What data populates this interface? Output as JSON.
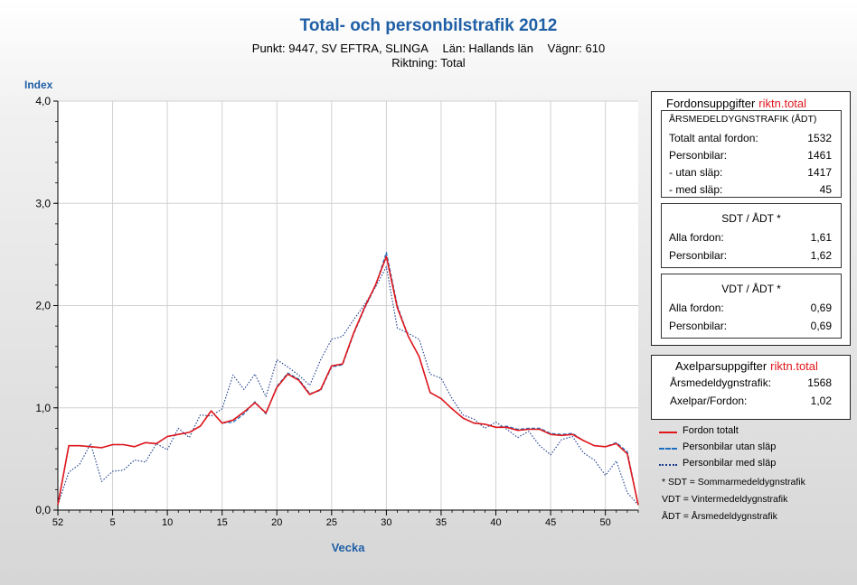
{
  "header": {
    "title": "Total- och personbilstrafik 2012",
    "point": "Punkt: 9447, SV EFTRA, SLINGA",
    "county": "Län: Hallands län",
    "road": "Vägnr: 610",
    "direction": "Riktning: Total"
  },
  "colors": {
    "total": "#e0161b",
    "utan": "#1f6fc0",
    "med": "#1a3a8c",
    "accent": "#1f5fa6"
  },
  "chart_data": {
    "type": "line",
    "title": "Total- och personbilstrafik 2012",
    "ylabel": "Index",
    "xlabel": "Vecka",
    "ylim": [
      0,
      4
    ],
    "yticks": [
      "0,0",
      "1,0",
      "2,0",
      "3,0",
      "4,0"
    ],
    "xticks": [
      "52",
      "5",
      "10",
      "15",
      "20",
      "25",
      "30",
      "35",
      "40",
      "45",
      "50"
    ],
    "x": [
      52,
      1,
      2,
      3,
      4,
      5,
      6,
      7,
      8,
      9,
      10,
      11,
      12,
      13,
      14,
      15,
      16,
      17,
      18,
      19,
      20,
      21,
      22,
      23,
      24,
      25,
      26,
      27,
      28,
      29,
      30,
      31,
      32,
      33,
      34,
      35,
      36,
      37,
      38,
      39,
      40,
      41,
      42,
      43,
      44,
      45,
      46,
      47,
      48,
      49,
      50,
      51,
      52,
      53
    ],
    "grid": true,
    "series": [
      {
        "name": "Fordon totalt",
        "style": "solid",
        "values": [
          0.05,
          0.63,
          0.63,
          0.62,
          0.61,
          0.64,
          0.64,
          0.62,
          0.66,
          0.65,
          0.72,
          0.74,
          0.76,
          0.82,
          0.97,
          0.85,
          0.88,
          0.96,
          1.05,
          0.95,
          1.2,
          1.33,
          1.27,
          1.13,
          1.18,
          1.41,
          1.43,
          1.73,
          1.98,
          2.2,
          2.48,
          1.98,
          1.7,
          1.5,
          1.15,
          1.09,
          0.99,
          0.9,
          0.85,
          0.84,
          0.81,
          0.81,
          0.78,
          0.79,
          0.79,
          0.74,
          0.73,
          0.74,
          0.68,
          0.63,
          0.62,
          0.65,
          0.55,
          0.05
        ]
      },
      {
        "name": "Personbilar utan släp",
        "style": "dashed",
        "values": [
          0.05,
          0.63,
          0.63,
          0.62,
          0.61,
          0.64,
          0.64,
          0.62,
          0.66,
          0.65,
          0.72,
          0.74,
          0.76,
          0.82,
          0.97,
          0.85,
          0.86,
          0.94,
          1.06,
          0.94,
          1.21,
          1.34,
          1.28,
          1.14,
          1.17,
          1.4,
          1.42,
          1.72,
          1.97,
          2.19,
          2.52,
          2.0,
          1.7,
          1.5,
          1.15,
          1.09,
          0.99,
          0.9,
          0.85,
          0.84,
          0.81,
          0.82,
          0.79,
          0.8,
          0.8,
          0.75,
          0.74,
          0.75,
          0.68,
          0.63,
          0.62,
          0.66,
          0.57,
          0.05
        ]
      },
      {
        "name": "Personbilar med släp",
        "style": "dotted",
        "values": [
          0.05,
          0.37,
          0.45,
          0.65,
          0.28,
          0.38,
          0.39,
          0.49,
          0.47,
          0.65,
          0.59,
          0.8,
          0.71,
          0.93,
          0.92,
          0.99,
          1.32,
          1.18,
          1.33,
          1.11,
          1.47,
          1.4,
          1.32,
          1.22,
          1.47,
          1.67,
          1.7,
          1.86,
          2.01,
          2.18,
          2.38,
          1.78,
          1.73,
          1.67,
          1.33,
          1.29,
          1.09,
          0.93,
          0.89,
          0.8,
          0.86,
          0.79,
          0.71,
          0.77,
          0.63,
          0.54,
          0.69,
          0.72,
          0.56,
          0.49,
          0.34,
          0.48,
          0.17,
          0.05
        ]
      }
    ]
  },
  "fordon": {
    "title": "Fordonsuppgifter",
    "dir": "riktn.total",
    "adt_head": "ÅRSMEDELDYGNSTRAFIK (ÅDT)",
    "rows": [
      {
        "label": "Totalt antal fordon:",
        "value": "1532"
      },
      {
        "label": "Personbilar:",
        "value": "1461"
      },
      {
        "label": "- utan släp:",
        "value": "1417"
      },
      {
        "label": "- med släp:",
        "value": "45"
      }
    ],
    "sdt_head": "SDT / ÅDT *",
    "sdt_rows": [
      {
        "label": "Alla fordon:",
        "value": "1,61"
      },
      {
        "label": "Personbilar:",
        "value": "1,62"
      }
    ],
    "vdt_head": "VDT / ÅDT *",
    "vdt_rows": [
      {
        "label": "Alla fordon:",
        "value": "0,69"
      },
      {
        "label": "Personbilar:",
        "value": "0,69"
      }
    ]
  },
  "axel": {
    "title": "Axelparsuppgifter",
    "dir": "riktn.total",
    "rows": [
      {
        "label": "Årsmedeldygnstrafik:",
        "value": "1568"
      },
      {
        "label": "Axelpar/Fordon:",
        "value": "1,02"
      }
    ]
  },
  "legend": [
    "Fordon totalt",
    "Personbilar utan släp",
    "Personbilar med släp"
  ],
  "notes": [
    "* SDT = Sommarmedeldygnstrafik",
    "VDT = Vintermedeldygnstrafik",
    "ÅDT = Årsmedeldygnstrafik"
  ]
}
